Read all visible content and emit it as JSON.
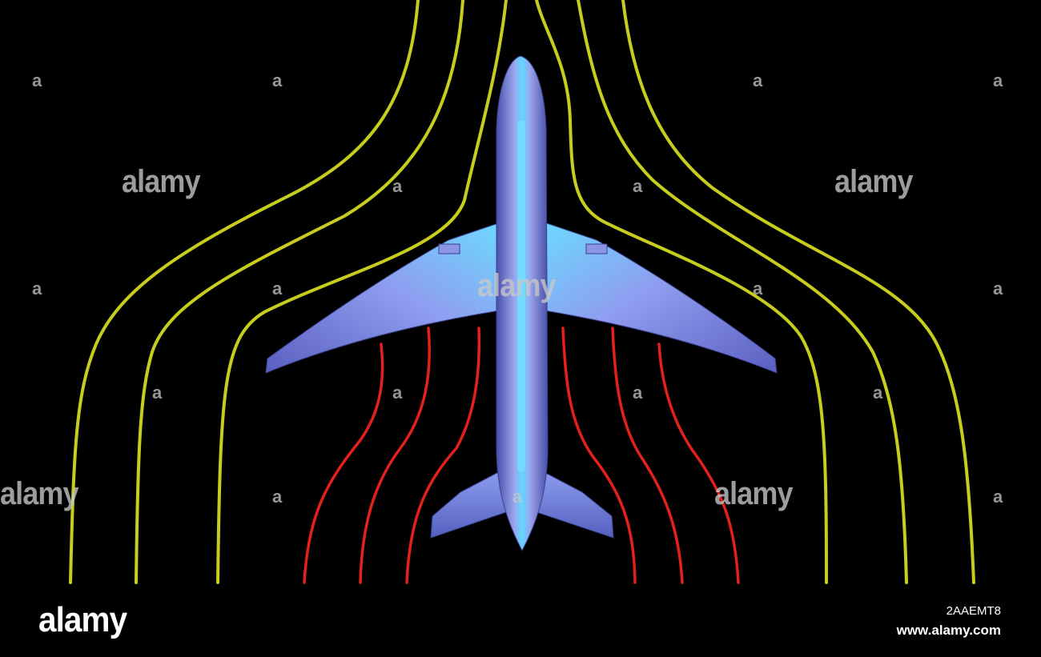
{
  "image": {
    "subject": "airplane-with-airflow-streamlines",
    "background_color": "#000000",
    "streamline_outer_color": "#c7cd1c",
    "streamline_inner_color": "#e3201b",
    "plane_color": "#6f84e0",
    "plane_highlight_color": "#7fe4ff"
  },
  "watermark": {
    "brand": "alamy",
    "small_mark": "a"
  },
  "footer": {
    "logo": "alamy",
    "image_id": "2AAEMT8",
    "url": "www.alamy.com"
  }
}
